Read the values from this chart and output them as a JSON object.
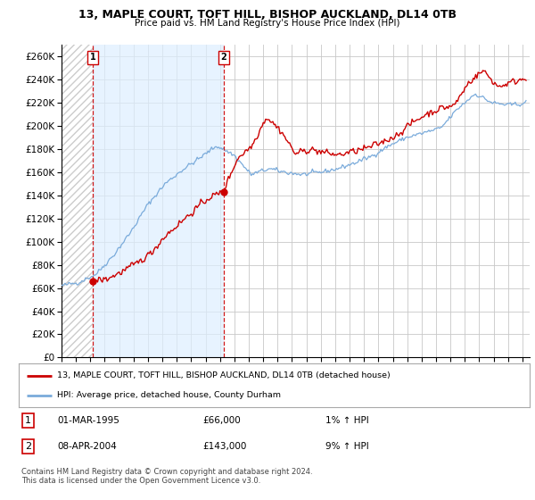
{
  "title": "13, MAPLE COURT, TOFT HILL, BISHOP AUCKLAND, DL14 0TB",
  "subtitle": "Price paid vs. HM Land Registry's House Price Index (HPI)",
  "ylabel_ticks": [
    0,
    20000,
    40000,
    60000,
    80000,
    100000,
    120000,
    140000,
    160000,
    180000,
    200000,
    220000,
    240000,
    260000
  ],
  "ylim": [
    0,
    270000
  ],
  "xlim_start": 1993.0,
  "xlim_end": 2025.5,
  "purchase1_year": 1995.17,
  "purchase1_price": 66000,
  "purchase1_label": "1",
  "purchase1_date": "01-MAR-1995",
  "purchase1_hpi": "1% ↑ HPI",
  "purchase2_year": 2004.27,
  "purchase2_price": 143000,
  "purchase2_label": "2",
  "purchase2_date": "08-APR-2004",
  "purchase2_hpi": "9% ↑ HPI",
  "line_color_red": "#cc0000",
  "line_color_blue": "#7aabdb",
  "grid_color": "#c8c8c8",
  "background_color": "#ffffff",
  "shade_color": "#ddeeff",
  "hatch_color": "#cccccc",
  "legend_line1": "13, MAPLE COURT, TOFT HILL, BISHOP AUCKLAND, DL14 0TB (detached house)",
  "legend_line2": "HPI: Average price, detached house, County Durham",
  "footnote": "Contains HM Land Registry data © Crown copyright and database right 2024.\nThis data is licensed under the Open Government Licence v3.0."
}
